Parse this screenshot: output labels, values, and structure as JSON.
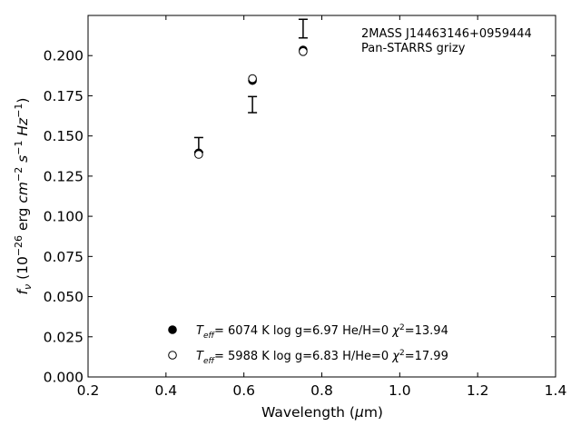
{
  "chart_data": {
    "type": "scatter",
    "title": "",
    "xlabel": "Wavelength (μm)",
    "ylabel": "f_ν (10^-26 erg cm^-2 s^-1 Hz^-1)",
    "xlim": [
      0.2,
      1.4
    ],
    "ylim": [
      0.0,
      0.225
    ],
    "x_ticks": [
      "0.2",
      "0.4",
      "0.6",
      "0.8",
      "1.0",
      "1.2",
      "1.4"
    ],
    "y_ticks": [
      "0.000",
      "0.025",
      "0.050",
      "0.075",
      "0.100",
      "0.125",
      "0.150",
      "0.175",
      "0.200"
    ],
    "grid": false,
    "legend_position": "bottom-center",
    "annotations": [
      "2MASS J14463146+0959444",
      "Pan-STARRS grizy"
    ],
    "observed": {
      "x": [
        0.484,
        0.622,
        0.752
      ],
      "y": [
        0.1445,
        0.1695,
        0.2168
      ],
      "yerr": [
        0.0045,
        0.005,
        0.0058
      ]
    },
    "series": [
      {
        "name": "Teff= 6074 K log g=6.97 He/H=0 χ²=13.94",
        "marker": "filled-circle",
        "x": [
          0.484,
          0.622,
          0.752
        ],
        "y": [
          0.1395,
          0.1845,
          0.2035
        ]
      },
      {
        "name": "Teff= 5988 K log g=6.83 H/He=0 χ²=17.99",
        "marker": "open-circle",
        "x": [
          0.484,
          0.622,
          0.752
        ],
        "y": [
          0.1385,
          0.1857,
          0.2025
        ]
      }
    ]
  }
}
